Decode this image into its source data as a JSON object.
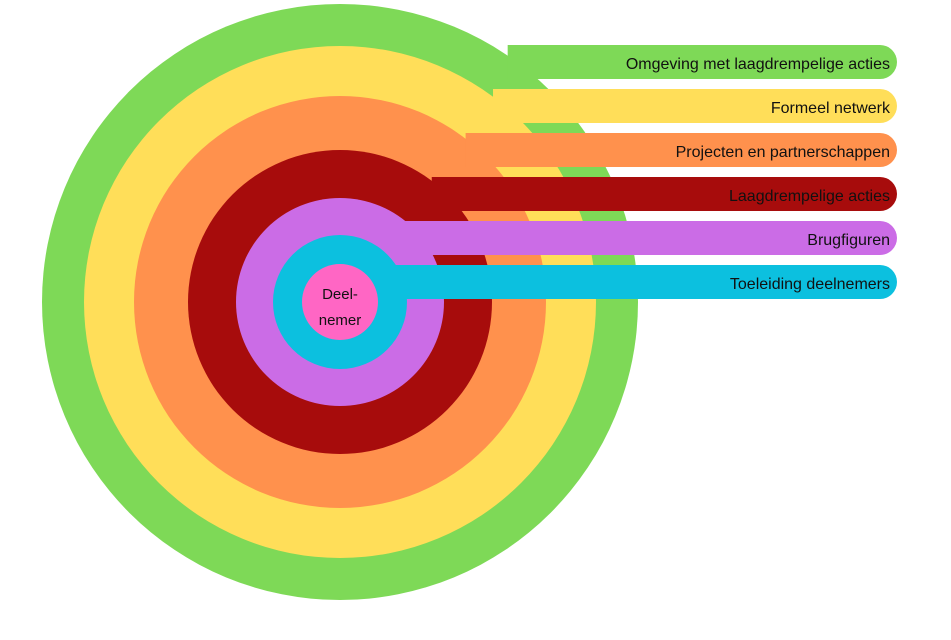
{
  "diagram": {
    "center": {
      "line1": "Deel-",
      "line2": "nemer",
      "color": "#FF66C4"
    },
    "layers": [
      {
        "label": "Omgeving met laagdrempelige acties",
        "color": "#7ED957"
      },
      {
        "label": "Formeel netwerk",
        "color": "#FFDE59"
      },
      {
        "label": "Projecten en partnerschappen",
        "color": "#FF914D"
      },
      {
        "label": "Laagdrempelige acties",
        "color": "#A70C0C"
      },
      {
        "label": "Brugfiguren",
        "color": "#CB6CE6"
      },
      {
        "label": "Toeleiding deelnemers",
        "color": "#0CC0DF"
      }
    ]
  }
}
